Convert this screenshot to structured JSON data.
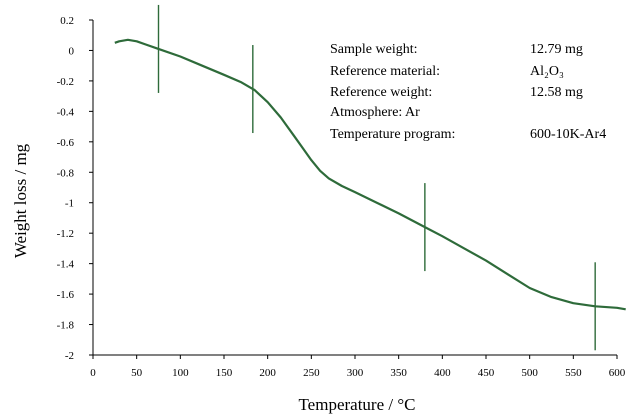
{
  "chart_data": {
    "type": "line",
    "xlabel": "Temperature / °C",
    "ylabel": "Weight loss / mg",
    "xlim": [
      0,
      600
    ],
    "ylim": [
      -2,
      0.2
    ],
    "x_ticks": [
      0,
      50,
      100,
      150,
      200,
      250,
      300,
      350,
      400,
      450,
      500,
      550,
      600
    ],
    "y_ticks": [
      0.2,
      0,
      -0.2,
      -0.4,
      -0.6,
      -0.8,
      -1,
      -1.2,
      -1.4,
      -1.6,
      -1.8,
      -2
    ],
    "y_tick_labels": [
      "0.2",
      "0",
      "-0.2",
      "-0.4",
      "-0.6",
      "-0.8",
      "-1",
      "-1.2",
      "-1.4",
      "-1.6",
      "-1.8",
      "-2"
    ],
    "grid": false,
    "line_color": "#2e6b3a",
    "series": [
      {
        "x": [
          25,
          30,
          40,
          50,
          60,
          75,
          100,
          125,
          150,
          170,
          185,
          200,
          215,
          230,
          240,
          250,
          260,
          270,
          285,
          300,
          325,
          350,
          380,
          400,
          425,
          450,
          475,
          500,
          525,
          550,
          575,
          600,
          610
        ],
        "y": [
          0.05,
          0.06,
          0.07,
          0.06,
          0.04,
          0.01,
          -0.04,
          -0.1,
          -0.16,
          -0.21,
          -0.26,
          -0.34,
          -0.44,
          -0.56,
          -0.64,
          -0.72,
          -0.79,
          -0.84,
          -0.89,
          -0.93,
          -1.0,
          -1.07,
          -1.16,
          -1.22,
          -1.3,
          -1.38,
          -1.47,
          -1.56,
          -1.62,
          -1.66,
          -1.68,
          -1.69,
          -1.7
        ]
      }
    ],
    "markers": [
      75,
      183,
      380,
      575
    ],
    "annotation": {
      "rows": [
        {
          "label": "Sample weight:",
          "value": "12.79 mg"
        },
        {
          "label": "Reference material:",
          "value": "Al₂O₃"
        },
        {
          "label": "Reference weight:",
          "value": "12.58 mg"
        },
        {
          "label": "Atmosphere: Ar",
          "value": ""
        },
        {
          "label": "Temperature program:",
          "value": "600-10K-Ar4"
        }
      ]
    }
  }
}
